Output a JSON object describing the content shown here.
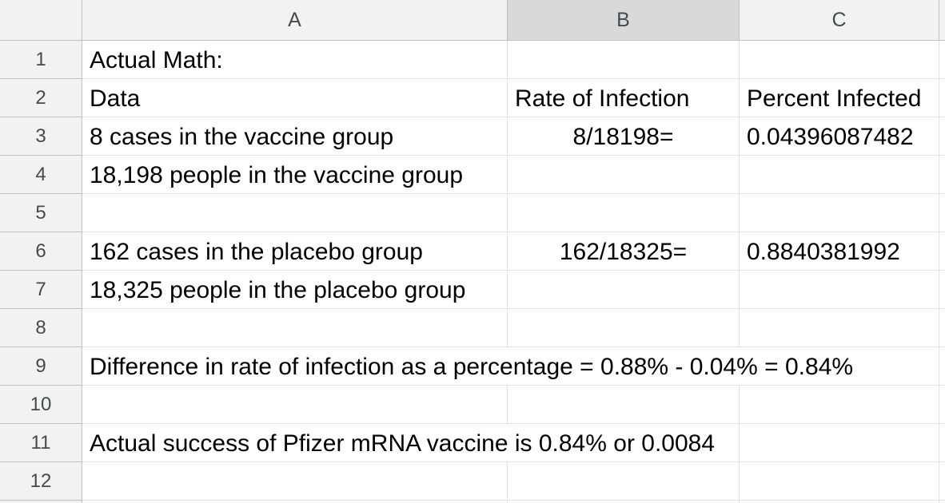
{
  "app": "spreadsheet-grid",
  "sheet": {
    "column_headers": [
      "A",
      "B",
      "C"
    ],
    "selected_column": "B",
    "row_numbers": [
      "1",
      "2",
      "3",
      "4",
      "5",
      "6",
      "7",
      "8",
      "9",
      "10",
      "11",
      "12"
    ]
  },
  "cells": {
    "A1": "Actual Math:",
    "A2": "Data",
    "B2": "Rate of Infection",
    "C2": "Percent Infected",
    "A3": "8 cases in the vaccine group",
    "B3": "8/18198=",
    "C3": "0.04396087482",
    "A4": "18,198 people in the vaccine group",
    "A6": "162 cases in the placebo group",
    "B6": "162/18325=",
    "C6": "0.8840381992",
    "A7": "18,325 people in the placebo group",
    "A9": "Difference in rate of infection as a percentage = 0.88% - 0.04% = 0.84%",
    "A11": "Actual success of Pfizer mRNA vaccine is 0.84% or 0.0084"
  },
  "cell_formats": {
    "B3": "center",
    "B6": "center",
    "A9": "overflow",
    "A11": "overflow"
  },
  "colors": {
    "header_bg": "#f2f2f2",
    "selected_header_bg": "#d9d9d9",
    "header_border": "#c1c1c1",
    "grid_line": "#e2e2e2",
    "header_text": "#474a4d",
    "cell_text": "#000000"
  }
}
